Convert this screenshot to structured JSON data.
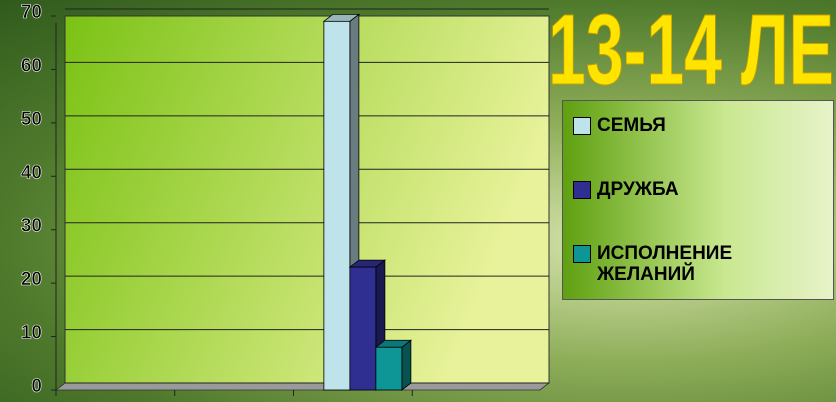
{
  "chart_data": {
    "type": "bar3d",
    "title": "13-14 ЛЕ",
    "categories": [
      null,
      null,
      null,
      null
    ],
    "series": [
      {
        "name": "СЕМЬЯ",
        "color": "#bfe3ea",
        "values": [
          null,
          null,
          69,
          null
        ]
      },
      {
        "name": "ДРУЖБА",
        "color": "#2f2f92",
        "values": [
          null,
          null,
          23,
          null
        ]
      },
      {
        "name": "ИСПОЛНЕНИЕ ЖЕЛАНИЙ",
        "color": "#0e9595",
        "values": [
          null,
          null,
          8,
          null
        ]
      }
    ],
    "ylim": [
      0,
      70
    ],
    "yticks": [
      0,
      10,
      20,
      30,
      40,
      50,
      60,
      70
    ],
    "grid": true,
    "legend": "right"
  }
}
